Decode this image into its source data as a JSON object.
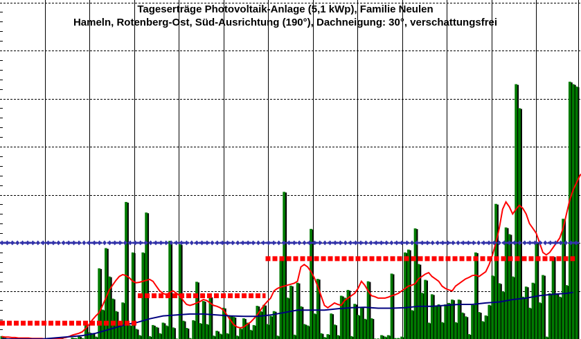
{
  "chart_data": {
    "type": "bar",
    "title": "Tageserträge Photovoltaik-Anlage (5,1 kWp),  Familie Neulen",
    "subtitle": "Hameln, Rotenberg-Ost, Süd-Ausrichtung (190°), Dachneigung: 30°, verschattungsfrei",
    "xlabel": "",
    "ylabel": "",
    "ylim": [
      0,
      7
    ],
    "grid": true,
    "colors": {
      "bar": "#007a00",
      "bar_shadow": "#000000",
      "moving_avg": "#ff0000",
      "cumulative_avg": "#00007f",
      "monthly_avg": "#ff0000",
      "reference": "#3333aa",
      "grid": "#000000"
    },
    "values": [
      0.06,
      0.03,
      0,
      0,
      0,
      0,
      0,
      0,
      0,
      0,
      0.01,
      0,
      0,
      0,
      0,
      0,
      0,
      0,
      0.01,
      0,
      0,
      0.03,
      0.02,
      0.06,
      0.02,
      0.3,
      0.14,
      0.12,
      0.05,
      1.47,
      0.61,
      1.89,
      1.3,
      0.84,
      0.58,
      0.3,
      0.76,
      2.85,
      0.29,
      1.8,
      0.21,
      0.08,
      1.8,
      2.63,
      0.06,
      0.29,
      0.25,
      0.12,
      0.34,
      0.28,
      2.04,
      0.24,
      0.01,
      1.97,
      0.38,
      0.23,
      0.02,
      0.39,
      1.19,
      0.33,
      0.79,
      0.31,
      0.88,
      0.07,
      0.17,
      0.11,
      0.65,
      0.12,
      0.49,
      0.46,
      0.07,
      0.22,
      0.43,
      0.34,
      0.19,
      0.29,
      0.69,
      0.58,
      0.71,
      0.31,
      0.48,
      0.58,
      0.07,
      1.68,
      3.06,
      0.86,
      1.11,
      0.09,
      1.17,
      0.68,
      0.31,
      0.28,
      2.29,
      0.53,
      1.25,
      0.12,
      0.04,
      0.1,
      0.53,
      0.3,
      0.08,
      0.9,
      0.86,
      1.02,
      0.06,
      0.73,
      0.5,
      0.66,
      0.42,
      1.2,
      0.43,
      0.01,
      0.01,
      0.08,
      0.05,
      0.08,
      1.36,
      0.02,
      0.02,
      0.05,
      1.8,
      1.86,
      0.6,
      2.3,
      1.56,
      0.96,
      1.23,
      0.34,
      0.93,
      0.69,
      0.72,
      0.35,
      0.72,
      0.75,
      0.82,
      0.35,
      0.82,
      0.55,
      0.47,
      0.1,
      0.72,
      1.8,
      0.56,
      0.37,
      0.49,
      0.71,
      1.32,
      2.81,
      1.16,
      0.99,
      2.32,
      2.18,
      1.3,
      5.3,
      4.8,
      0.88,
      1.09,
      0.65,
      1.17,
      2.0,
      0.76,
      1.33,
      0.05,
      0.95,
      1.72,
      0.95,
      0.88,
      2.5,
      1.12,
      5.35,
      5.3,
      5.25
    ],
    "series": [
      {
        "name": "",
        "type": "line",
        "role": "moving_avg",
        "values": [
          0.05,
          0.04,
          0.04,
          0.03,
          0.03,
          0.02,
          0.02,
          0.02,
          0.02,
          0.01,
          0.01,
          0.01,
          0.01,
          0,
          0,
          0,
          0.01,
          0.01,
          0.02,
          0.03,
          0.05,
          0.08,
          0.1,
          0.12,
          0.15,
          0.22,
          0.3,
          0.4,
          0.48,
          0.55,
          0.7,
          0.85,
          1.02,
          1.12,
          1.22,
          1.3,
          1.34,
          1.32,
          1.27,
          1.2,
          1.17,
          1.18,
          1.2,
          1.22,
          1.24,
          1.2,
          1.1,
          1.0,
          0.95,
          0.92,
          0.97,
          1.0,
          0.95,
          0.9,
          0.8,
          0.72,
          0.7,
          0.72,
          0.75,
          0.78,
          0.82,
          0.8,
          0.75,
          0.7,
          0.68,
          0.65,
          0.6,
          0.5,
          0.4,
          0.3,
          0.25,
          0.23,
          0.25,
          0.3,
          0.35,
          0.42,
          0.5,
          0.6,
          0.7,
          0.78,
          0.85,
          1.0,
          1.05,
          1.08,
          1.1,
          1.12,
          1.14,
          1.16,
          1.2,
          1.5,
          1.55,
          1.5,
          1.4,
          1.27,
          1.1,
          0.9,
          0.7,
          0.65,
          0.7,
          0.75,
          0.72,
          0.7,
          0.8,
          0.85,
          0.9,
          0.95,
          1.05,
          1.2,
          1.12,
          1.0,
          0.9,
          0.88,
          0.85,
          0.85,
          0.85,
          0.87,
          0.9,
          0.92,
          0.95,
          1.0,
          1.05,
          1.1,
          1.12,
          1.15,
          1.25,
          1.3,
          1.35,
          1.38,
          1.3,
          1.25,
          1.2,
          1.1,
          1.05,
          1.02,
          1.0,
          1.1,
          1.15,
          1.2,
          1.25,
          1.28,
          1.32,
          1.33,
          1.3,
          1.35,
          1.4,
          1.55,
          1.75,
          2.0,
          2.3,
          2.7,
          2.85,
          2.75,
          2.6,
          2.7,
          2.78,
          2.72,
          2.6,
          2.4,
          2.3,
          2.2,
          2.0,
          1.8,
          1.75,
          1.8,
          1.9,
          2.0,
          2.1,
          2.3,
          2.6,
          2.9,
          3.1,
          3.25,
          3.4,
          3.47
        ]
      },
      {
        "name": "",
        "type": "line",
        "role": "cumulative_avg",
        "values": [
          0,
          0,
          0,
          0,
          0,
          0,
          0,
          0,
          0,
          0,
          0,
          0,
          0,
          0,
          0,
          0,
          0,
          0,
          0,
          0,
          0,
          0,
          0,
          0,
          0,
          0,
          0,
          0,
          0,
          0,
          0,
          0,
          0,
          0,
          0,
          0,
          0,
          0,
          0,
          0,
          0,
          0,
          0,
          0,
          0,
          0,
          0,
          0,
          0,
          0,
          0,
          0,
          0,
          0,
          0,
          0,
          0,
          0,
          0,
          0,
          0,
          0,
          0,
          0,
          0,
          0,
          0,
          0,
          0,
          0,
          0,
          0,
          0,
          0,
          0,
          0,
          0,
          0,
          0,
          0,
          0,
          0,
          0,
          0,
          0,
          0,
          0,
          0,
          0,
          0,
          0,
          0,
          0,
          0,
          0,
          0,
          0,
          0,
          0,
          0,
          0,
          0,
          0,
          0,
          0,
          0,
          0,
          0,
          0,
          0,
          0,
          0,
          0,
          0,
          0,
          0,
          0,
          0,
          0,
          0,
          0,
          0,
          0,
          0,
          0,
          0,
          0,
          0,
          0,
          0,
          0,
          0,
          0,
          0,
          0,
          0,
          0,
          0,
          0,
          0,
          0,
          0,
          0,
          0,
          0,
          0,
          0,
          0,
          0,
          0,
          0,
          0,
          0,
          0,
          0,
          0,
          0,
          0,
          0,
          0,
          0,
          0,
          0,
          0,
          0,
          0,
          0,
          0,
          0,
          0,
          0,
          0,
          0
        ],
        "points": [
          [
            0,
            0
          ],
          [
            12,
            0
          ],
          [
            24,
            0.07
          ],
          [
            28,
            0.12
          ],
          [
            31,
            0.18
          ],
          [
            34,
            0.24
          ],
          [
            37,
            0.3
          ],
          [
            40,
            0.34
          ],
          [
            44,
            0.42
          ],
          [
            48,
            0.48
          ],
          [
            52,
            0.5
          ],
          [
            56,
            0.52
          ],
          [
            60,
            0.52
          ],
          [
            64,
            0.5
          ],
          [
            68,
            0.48
          ],
          [
            72,
            0.47
          ],
          [
            76,
            0.47
          ],
          [
            80,
            0.5
          ],
          [
            84,
            0.55
          ],
          [
            88,
            0.6
          ],
          [
            92,
            0.6
          ],
          [
            96,
            0.6
          ],
          [
            100,
            0.63
          ],
          [
            104,
            0.65
          ],
          [
            108,
            0.66
          ],
          [
            112,
            0.64
          ],
          [
            116,
            0.64
          ],
          [
            120,
            0.65
          ],
          [
            124,
            0.68
          ],
          [
            128,
            0.68
          ],
          [
            132,
            0.7
          ],
          [
            136,
            0.72
          ],
          [
            140,
            0.72
          ],
          [
            144,
            0.75
          ],
          [
            148,
            0.77
          ],
          [
            152,
            0.82
          ],
          [
            156,
            0.85
          ],
          [
            160,
            0.9
          ],
          [
            164,
            0.93
          ],
          [
            168,
            0.95
          ],
          [
            170,
            0.97
          ]
        ]
      },
      {
        "name": "",
        "type": "step",
        "role": "monthly_avg",
        "segments": [
          [
            0,
            40,
            0.33
          ],
          [
            41,
            78,
            0.9
          ],
          [
            79,
            170,
            1.67
          ]
        ]
      },
      {
        "name": "",
        "type": "hline",
        "role": "reference",
        "value": 2.0
      }
    ]
  }
}
